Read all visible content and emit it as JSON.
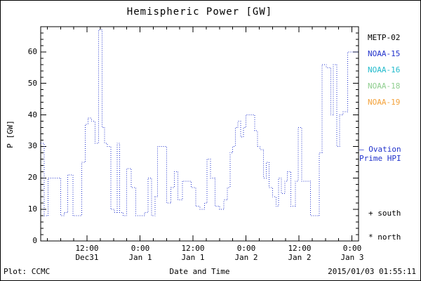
{
  "title": "Hemispheric Power [GW]",
  "axes": {
    "ylabel": "P [GW]",
    "xlabel": "Date and Time",
    "y_ticks": [
      0,
      10,
      20,
      30,
      40,
      50,
      60
    ],
    "x_ticks": [
      {
        "time": "12:00",
        "date": "Dec31",
        "hour": 12
      },
      {
        "time": "0:00",
        "date": "Jan 1",
        "hour": 24
      },
      {
        "time": "12:00",
        "date": "Jan 1",
        "hour": 36
      },
      {
        "time": "0:00",
        "date": "Jan 2",
        "hour": 48
      },
      {
        "time": "12:00",
        "date": "Jan 2",
        "hour": 60
      },
      {
        "time": "0:00",
        "date": "Jan 3",
        "hour": 72
      }
    ]
  },
  "legend": [
    {
      "label": "METP-02",
      "color": "#000000"
    },
    {
      "label": "NOAA-15",
      "color": "#2233cc"
    },
    {
      "label": "NOAA-16",
      "color": "#22bbcc"
    },
    {
      "label": "NOAA-18",
      "color": "#8fce8f"
    },
    {
      "label": "NOAA-19",
      "color": "#f4a23a"
    }
  ],
  "annotations": {
    "ovation_line1": "— Ovation",
    "ovation_line2": "Prime HPI",
    "ovation_color": "#2233cc",
    "south_marker": "+ south",
    "north_marker": "* north"
  },
  "footer": {
    "plot_credit": "Plot: CCMC",
    "timestamp": "2015/01/03 01:55:11"
  },
  "chart_data": {
    "type": "line",
    "style": "step-dotted",
    "title": "Hemispheric Power [GW]",
    "xlabel": "Date and Time",
    "ylabel": "P [GW]",
    "ylim": [
      0,
      68
    ],
    "xlim_hours": [
      1.5,
      73.5
    ],
    "x_unit": "hours since 2014-12-31 00:00 UTC",
    "grid": "off",
    "legend_position": "right",
    "series": [
      {
        "name": "Ovation Prime HPI",
        "color": "#2233cc",
        "points": [
          [
            1.5,
            31
          ],
          [
            2.3,
            8
          ],
          [
            3.2,
            20
          ],
          [
            4.6,
            20
          ],
          [
            6.0,
            8
          ],
          [
            6.8,
            9
          ],
          [
            7.6,
            21
          ],
          [
            8.8,
            8
          ],
          [
            9.6,
            8
          ],
          [
            10.8,
            25
          ],
          [
            11.6,
            37
          ],
          [
            12.2,
            39
          ],
          [
            13.0,
            38
          ],
          [
            13.8,
            31
          ],
          [
            14.6,
            67
          ],
          [
            15.4,
            36
          ],
          [
            16.0,
            31
          ],
          [
            16.6,
            30
          ],
          [
            17.4,
            10
          ],
          [
            18.2,
            9
          ],
          [
            18.8,
            31
          ],
          [
            19.4,
            9
          ],
          [
            20.2,
            8
          ],
          [
            21.0,
            23
          ],
          [
            22.0,
            17
          ],
          [
            23.0,
            8
          ],
          [
            24.0,
            8
          ],
          [
            25.0,
            9
          ],
          [
            25.8,
            20
          ],
          [
            26.6,
            8
          ],
          [
            27.4,
            14
          ],
          [
            28.0,
            30
          ],
          [
            29.0,
            30
          ],
          [
            30.0,
            12
          ],
          [
            31.0,
            17
          ],
          [
            31.8,
            22
          ],
          [
            32.6,
            13
          ],
          [
            33.6,
            19
          ],
          [
            34.6,
            19
          ],
          [
            35.6,
            17
          ],
          [
            36.6,
            11
          ],
          [
            37.6,
            10
          ],
          [
            38.6,
            12
          ],
          [
            39.2,
            26
          ],
          [
            40.0,
            20
          ],
          [
            41.0,
            11
          ],
          [
            42.0,
            10
          ],
          [
            43.0,
            13
          ],
          [
            43.8,
            17
          ],
          [
            44.4,
            28
          ],
          [
            45.0,
            30
          ],
          [
            45.6,
            36
          ],
          [
            46.2,
            38
          ],
          [
            46.8,
            33
          ],
          [
            47.4,
            36
          ],
          [
            48.0,
            40
          ],
          [
            49.0,
            40
          ],
          [
            50.0,
            35
          ],
          [
            50.6,
            30
          ],
          [
            51.2,
            29
          ],
          [
            52.0,
            20
          ],
          [
            52.6,
            25
          ],
          [
            53.2,
            17
          ],
          [
            54.0,
            14
          ],
          [
            54.8,
            11
          ],
          [
            55.4,
            20
          ],
          [
            56.0,
            15
          ],
          [
            56.8,
            19
          ],
          [
            57.4,
            22
          ],
          [
            58.2,
            11
          ],
          [
            59.2,
            19
          ],
          [
            59.8,
            36
          ],
          [
            60.6,
            19
          ],
          [
            61.6,
            19
          ],
          [
            62.6,
            8
          ],
          [
            63.6,
            8
          ],
          [
            64.6,
            28
          ],
          [
            65.2,
            56
          ],
          [
            66.2,
            55
          ],
          [
            67.2,
            40
          ],
          [
            67.8,
            56
          ],
          [
            68.6,
            30
          ],
          [
            69.2,
            40
          ],
          [
            70.0,
            41
          ],
          [
            71.0,
            60
          ],
          [
            72.8,
            60
          ]
        ]
      }
    ]
  }
}
